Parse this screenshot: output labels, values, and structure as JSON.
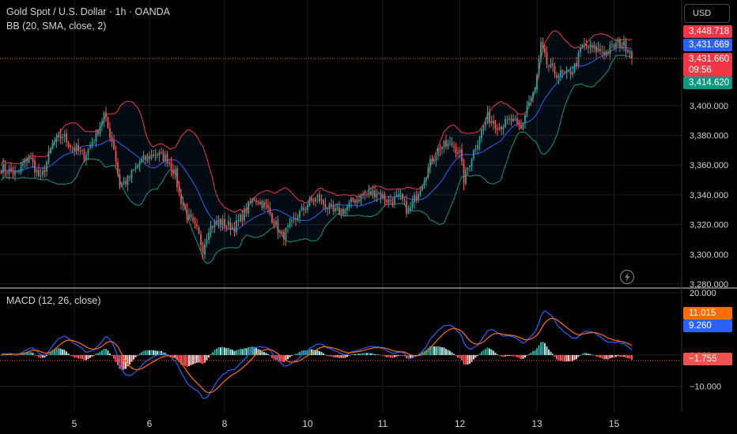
{
  "header": {
    "symbol": "Gold Spot / U.S. Dollar · 1h · OANDA",
    "indicator": "BB (20, SMA, close, 2)",
    "macd": "MACD (12, 26, close)"
  },
  "currency_button": "USD",
  "price_badges": {
    "upper_band": "3,448.718",
    "basis": "3,431.669",
    "last_price": "3,431.660",
    "countdown": "09:56",
    "lower_band": "3,414.620"
  },
  "macd_badges": {
    "signal": "11.015",
    "macd": "9.260",
    "histogram": "−1.755"
  },
  "colors": {
    "background": "#000000",
    "up": "#26a69a",
    "down": "#ef5350",
    "bb_upper": "#f23645",
    "bb_basis": "#2962ff",
    "bb_lower": "#089981",
    "macd_line": "#2962ff",
    "signal_line": "#ff6d00",
    "grid": "#1c1c1c"
  },
  "chart_data": [
    {
      "type": "candlestick",
      "title": "Gold Spot / U.S. Dollar · 1h · OANDA",
      "ylim": [
        3278,
        3462
      ],
      "yticks": [
        "3,400.000",
        "3,380.000",
        "3,360.000",
        "3,340.000",
        "3,320.000",
        "3,300.000",
        "3,280.000"
      ],
      "ytick_values": [
        3400,
        3380,
        3360,
        3340,
        3320,
        3300,
        3280
      ],
      "xticks": [
        "5",
        "6",
        "8",
        "10",
        "11",
        "12",
        "13",
        "15"
      ],
      "last_price": 3431.66,
      "close_anchors": [
        [
          0,
          3358
        ],
        [
          8,
          3354
        ],
        [
          14,
          3366
        ],
        [
          20,
          3350
        ],
        [
          26,
          3374
        ],
        [
          31,
          3380
        ],
        [
          36,
          3372
        ],
        [
          42,
          3366
        ],
        [
          48,
          3380
        ],
        [
          52,
          3394
        ],
        [
          57,
          3372
        ],
        [
          60,
          3346
        ],
        [
          64,
          3350
        ],
        [
          70,
          3362
        ],
        [
          78,
          3368
        ],
        [
          84,
          3364
        ],
        [
          88,
          3354
        ],
        [
          90,
          3340
        ],
        [
          94,
          3326
        ],
        [
          99,
          3316
        ],
        [
          102,
          3304
        ],
        [
          105,
          3318
        ],
        [
          110,
          3322
        ],
        [
          118,
          3318
        ],
        [
          124,
          3330
        ],
        [
          128,
          3338
        ],
        [
          134,
          3332
        ],
        [
          138,
          3322
        ],
        [
          142,
          3312
        ],
        [
          146,
          3318
        ],
        [
          150,
          3326
        ],
        [
          155,
          3334
        ],
        [
          160,
          3338
        ],
        [
          168,
          3328
        ],
        [
          174,
          3330
        ],
        [
          178,
          3336
        ],
        [
          184,
          3340
        ],
        [
          190,
          3342
        ],
        [
          196,
          3336
        ],
        [
          202,
          3338
        ],
        [
          206,
          3328
        ],
        [
          210,
          3340
        ],
        [
          214,
          3352
        ],
        [
          218,
          3364
        ],
        [
          222,
          3372
        ],
        [
          228,
          3374
        ],
        [
          232,
          3368
        ],
        [
          234,
          3350
        ],
        [
          238,
          3366
        ],
        [
          242,
          3380
        ],
        [
          246,
          3392
        ],
        [
          252,
          3386
        ],
        [
          258,
          3390
        ],
        [
          263,
          3384
        ],
        [
          266,
          3400
        ],
        [
          270,
          3410
        ],
        [
          273,
          3440
        ],
        [
          276,
          3428
        ],
        [
          280,
          3422
        ],
        [
          286,
          3420
        ],
        [
          290,
          3426
        ],
        [
          294,
          3440
        ],
        [
          300,
          3438
        ],
        [
          306,
          3436
        ],
        [
          312,
          3442
        ],
        [
          316,
          3440
        ],
        [
          319,
          3436
        ]
      ],
      "bollinger": {
        "period": 20,
        "stddev": 2,
        "upper_last": 3448.718,
        "basis_last": 3431.669,
        "lower_last": 3414.62
      }
    },
    {
      "type": "macd",
      "title": "MACD (12, 26, close)",
      "ylim": [
        -14,
        22
      ],
      "yticks": [
        "20.000",
        "0.000",
        "−10.000"
      ],
      "ytick_values": [
        20,
        0,
        -10
      ],
      "series": [
        {
          "name": "MACD",
          "last": 9.26
        },
        {
          "name": "Signal",
          "last": 11.015
        },
        {
          "name": "Histogram",
          "last": -1.755
        }
      ]
    }
  ]
}
